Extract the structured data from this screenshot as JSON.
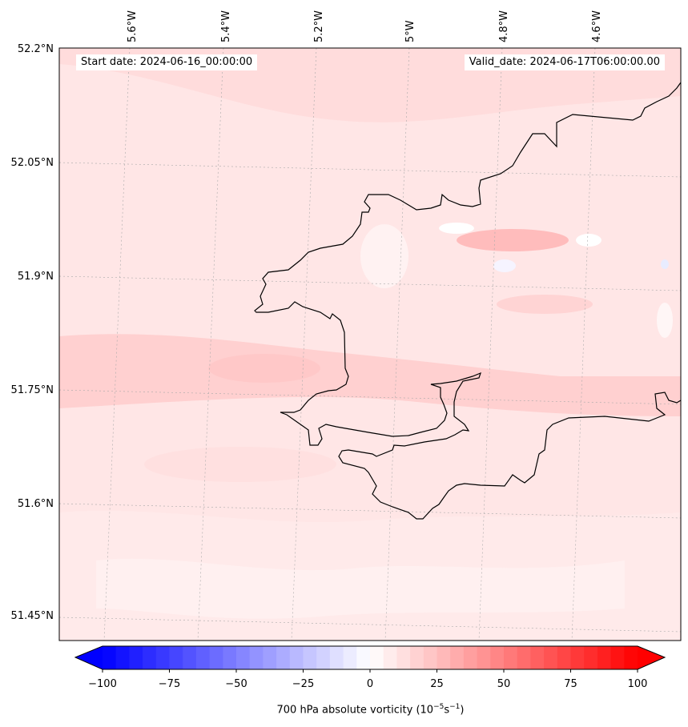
{
  "map": {
    "start_label": "Start date: 2024-06-16_00:00:00",
    "valid_label": "Valid_date: 2024-06-17T06:00:00.00",
    "lon_ticks": [
      "5.6°W",
      "5.4°W",
      "5.2°W",
      "5°W",
      "4.8°W",
      "4.6°W"
    ],
    "lat_ticks": [
      "52.2°N",
      "52.05°N",
      "51.9°N",
      "51.75°N",
      "51.6°N",
      "51.45°N"
    ],
    "colors": {
      "background": "#ffe4e4",
      "coastline": "#000000",
      "gridline": "#b0b0b0"
    }
  },
  "colorbar": {
    "title_prefix": "700 hPa absolute vorticity (10",
    "title_exp1": "−5",
    "title_mid": "s",
    "title_exp2": "−1",
    "title_suffix": ")",
    "ticks": [
      "−100",
      "−75",
      "−50",
      "−25",
      "0",
      "25",
      "50",
      "75",
      "100"
    ],
    "colormap": "bwr",
    "range": [
      -100,
      100
    ]
  }
}
